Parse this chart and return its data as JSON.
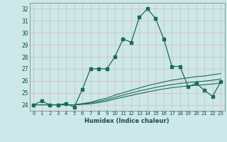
{
  "title": "",
  "xlabel": "Humidex (Indice chaleur)",
  "bg_color": "#cce8e8",
  "grid_color": "#b8d8d8",
  "line_color": "#1a6b5a",
  "xlim": [
    -0.5,
    23.5
  ],
  "ylim": [
    23.5,
    32.5
  ],
  "xticks": [
    0,
    1,
    2,
    3,
    4,
    5,
    6,
    7,
    8,
    9,
    10,
    11,
    12,
    13,
    14,
    15,
    16,
    17,
    18,
    19,
    20,
    21,
    22,
    23
  ],
  "yticks": [
    24,
    25,
    26,
    27,
    28,
    29,
    30,
    31,
    32
  ],
  "main_y": [
    24.0,
    24.3,
    24.0,
    24.0,
    24.1,
    23.8,
    25.3,
    27.0,
    27.0,
    27.0,
    28.0,
    29.5,
    29.2,
    31.3,
    32.0,
    31.2,
    29.5,
    27.2,
    27.2,
    25.5,
    25.8,
    25.2,
    24.7,
    25.9
  ],
  "line2_y": [
    24.0,
    24.0,
    24.0,
    24.0,
    24.0,
    24.0,
    24.1,
    24.2,
    24.4,
    24.55,
    24.8,
    25.0,
    25.2,
    25.4,
    25.6,
    25.75,
    25.9,
    26.05,
    26.15,
    26.25,
    26.35,
    26.4,
    26.5,
    26.6
  ],
  "line3_y": [
    24.0,
    24.0,
    24.0,
    24.0,
    24.0,
    24.0,
    24.07,
    24.15,
    24.28,
    24.42,
    24.62,
    24.8,
    24.98,
    25.15,
    25.3,
    25.45,
    25.58,
    25.68,
    25.78,
    25.85,
    25.92,
    25.97,
    26.05,
    26.15
  ],
  "line4_y": [
    24.0,
    24.0,
    24.0,
    24.0,
    24.0,
    24.0,
    24.03,
    24.08,
    24.18,
    24.3,
    24.48,
    24.63,
    24.78,
    24.93,
    25.07,
    25.2,
    25.32,
    25.42,
    25.5,
    25.57,
    25.62,
    25.67,
    25.73,
    25.82
  ]
}
